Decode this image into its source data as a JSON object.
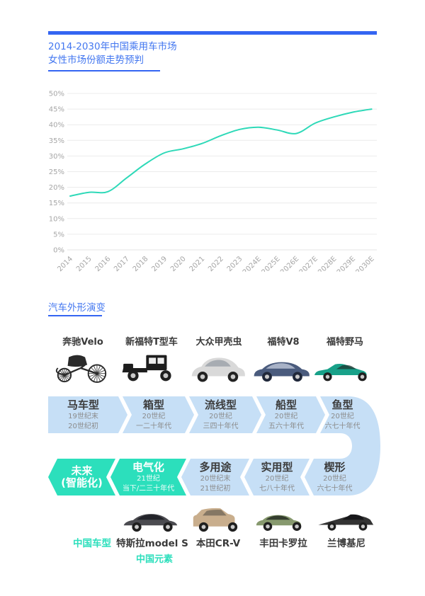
{
  "header": {
    "title_line1": "2014-2030年中国乘用车市场",
    "title_line2": "女性市场份额走势预判"
  },
  "chart_data": {
    "type": "line",
    "title": "2014-2030年中国乘用车市场女性市场份额走势预判",
    "categories": [
      "2014",
      "2015",
      "2016",
      "2017",
      "2018",
      "2019",
      "2020",
      "2021",
      "2022",
      "2023",
      "2024E",
      "2025E",
      "2026E",
      "2027E",
      "2028E",
      "2029E",
      "2030E"
    ],
    "values": [
      17.2,
      18.4,
      18.6,
      23,
      27.5,
      31,
      32.3,
      34,
      36.5,
      38.5,
      39.2,
      38.3,
      37.2,
      40.5,
      42.5,
      44,
      45
    ],
    "y_ticks": [
      "0%",
      "5%",
      "10%",
      "15%",
      "20%",
      "25%",
      "30%",
      "35%",
      "40%",
      "45%",
      "50%"
    ],
    "ylim": [
      0,
      50
    ],
    "grid": true,
    "legend": "none",
    "line_color": "#2ed9b8"
  },
  "evolution": {
    "section_title": "汽车外形演变",
    "top_cars": [
      {
        "id": "benz-velo",
        "label": "奔驰Velo",
        "shape": "carriage",
        "color": "#2a2a2a"
      },
      {
        "id": "ford-model-t",
        "label": "新福特T型车",
        "shape": "boxy",
        "color": "#1d1d1d"
      },
      {
        "id": "vw-beetle",
        "label": "大众甲壳虫",
        "shape": "beetle",
        "color": "#d9d9d9"
      },
      {
        "id": "ford-v8",
        "label": "福特V8",
        "shape": "classic",
        "color": "#4a5b7d"
      },
      {
        "id": "ford-mustang",
        "label": "福特野马",
        "shape": "muscle",
        "color": "#18a189"
      }
    ],
    "timeline_row1": [
      {
        "id": "horse-carriage",
        "title": "马车型",
        "period": [
          "19世纪末",
          "20世纪初"
        ],
        "theme": "blue"
      },
      {
        "id": "box",
        "title": "箱型",
        "period": [
          "20世纪",
          "一二十年代"
        ],
        "theme": "blue"
      },
      {
        "id": "streamline",
        "title": "流线型",
        "period": [
          "20世纪",
          "三四十年代"
        ],
        "theme": "blue"
      },
      {
        "id": "boat",
        "title": "船型",
        "period": [
          "20世纪",
          "五六十年代"
        ],
        "theme": "blue"
      },
      {
        "id": "fish",
        "title": "鱼型",
        "period": [
          "20世纪",
          "六七十年代"
        ],
        "theme": "blue"
      }
    ],
    "timeline_row2": [
      {
        "id": "future-smart",
        "title": "未来",
        "title_line2": "(智能化)",
        "period": [],
        "theme": "teal"
      },
      {
        "id": "electric",
        "title": "电气化",
        "period": [
          "21世纪",
          "当下/二三十年代"
        ],
        "theme": "teal"
      },
      {
        "id": "multi-purpose",
        "title": "多用途",
        "period": [
          "20世纪末",
          "21世纪初"
        ],
        "theme": "blue"
      },
      {
        "id": "utility",
        "title": "实用型",
        "period": [
          "20世纪",
          "七八十年代"
        ],
        "theme": "blue"
      },
      {
        "id": "wedge",
        "title": "楔形",
        "period": [
          "20世纪",
          "六七十年代"
        ],
        "theme": "blue"
      }
    ],
    "bottom_cars": [
      {
        "id": "tesla-model-s",
        "label": "特斯拉model S",
        "shape": "tesla",
        "color": "#4b4b50"
      },
      {
        "id": "honda-crv",
        "label": "本田CR-V",
        "shape": "suv",
        "color": "#c9ae8d"
      },
      {
        "id": "toyota-corolla",
        "label": "丰田卡罗拉",
        "shape": "compact",
        "color": "#87996e"
      },
      {
        "id": "lamborghini",
        "label": "兰博基尼",
        "shape": "wedge",
        "color": "#333333"
      }
    ],
    "china_model_label": "中国车型",
    "china_element_label": "中国元素"
  },
  "colors": {
    "accent_blue": "#3465f2",
    "title_blue": "#4377f0",
    "light_blue": "#c6dff6",
    "teal": "#2cdfbc",
    "chart_line": "#2ed9b8",
    "grid_grey": "#ececec",
    "tick_grey": "#a6a6a6"
  }
}
